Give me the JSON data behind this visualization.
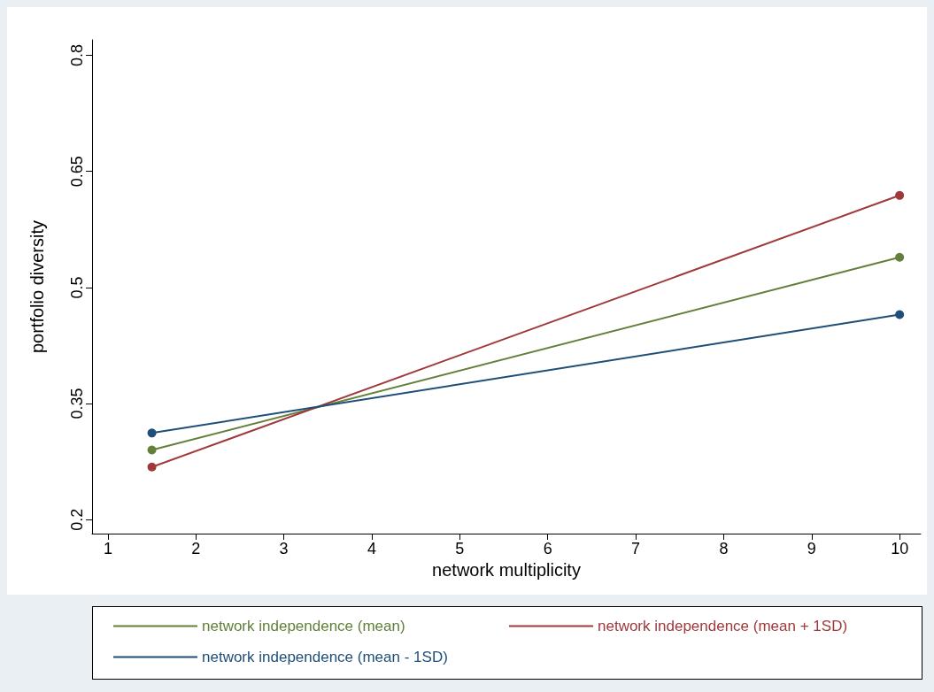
{
  "chart_data": {
    "type": "line",
    "xlabel": "network multiplicity",
    "ylabel": "portfolio diversity",
    "x": [
      1.5,
      10
    ],
    "series": [
      {
        "name": "network independence (mean)",
        "color": "#62803a",
        "values": [
          0.29,
          0.539
        ]
      },
      {
        "name": "network independence (mean + 1SD)",
        "color": "#a0393c",
        "values": [
          0.268,
          0.619
        ]
      },
      {
        "name": "network independence (mean - 1SD)",
        "color": "#1f4e79",
        "values": [
          0.312,
          0.465
        ]
      }
    ],
    "xlim": [
      0.82,
      10.24
    ],
    "xticks": [
      1,
      2,
      3,
      4,
      5,
      6,
      7,
      8,
      9,
      10
    ],
    "ylim": [
      0.182,
      0.82
    ],
    "yticks": [
      0.2,
      0.35,
      0.5,
      0.65,
      0.8
    ],
    "grid": false,
    "legend": "bottom",
    "marker": "circle",
    "line_style": "solid"
  }
}
